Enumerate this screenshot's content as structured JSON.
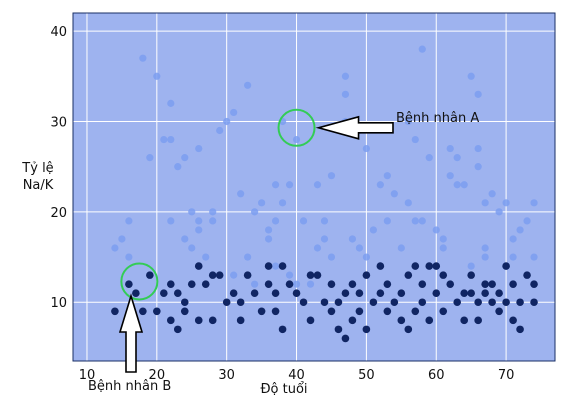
{
  "chart_data": {
    "type": "scatter",
    "title": "",
    "xlabel": "Độ tuổi",
    "ylabel": "Tỷ lệ\nNa/K",
    "ylabel_lines": [
      "Tỷ lệ",
      "Na/K"
    ],
    "xlim": [
      8,
      77
    ],
    "ylim": [
      3.5,
      42
    ],
    "xticks": [
      10,
      20,
      30,
      40,
      50,
      60,
      70
    ],
    "yticks": [
      10,
      20,
      30,
      40
    ],
    "grid": true,
    "colors": {
      "background": "#9eb3ef",
      "grid": "#ffffff",
      "light_points": "#7b9ef0",
      "dark_points": "#102563",
      "highlight": "#33cc55"
    },
    "series": [
      {
        "name": "",
        "color": "#7b9ef0",
        "points": [
          [
            14,
            16
          ],
          [
            15,
            17
          ],
          [
            16,
            19
          ],
          [
            16,
            15
          ],
          [
            18,
            37
          ],
          [
            20,
            35
          ],
          [
            19,
            26
          ],
          [
            21,
            28
          ],
          [
            22,
            28
          ],
          [
            22,
            19
          ],
          [
            23,
            25
          ],
          [
            24,
            26
          ],
          [
            22,
            32
          ],
          [
            25,
            16
          ],
          [
            25,
            20
          ],
          [
            26,
            19
          ],
          [
            26,
            18
          ],
          [
            24,
            17
          ],
          [
            26,
            27
          ],
          [
            28,
            20
          ],
          [
            28,
            19
          ],
          [
            29,
            29
          ],
          [
            30,
            30
          ],
          [
            31,
            31
          ],
          [
            33,
            34
          ],
          [
            31,
            13
          ],
          [
            32,
            22
          ],
          [
            33,
            15
          ],
          [
            34,
            20
          ],
          [
            35,
            21
          ],
          [
            36,
            17
          ],
          [
            36,
            18
          ],
          [
            37,
            23
          ],
          [
            37,
            14
          ],
          [
            38,
            30
          ],
          [
            38,
            21
          ],
          [
            39,
            23
          ],
          [
            39,
            13
          ],
          [
            40,
            28
          ],
          [
            41,
            19
          ],
          [
            42,
            12
          ],
          [
            43,
            23
          ],
          [
            43,
            16
          ],
          [
            44,
            19
          ],
          [
            45,
            15
          ],
          [
            45,
            24
          ],
          [
            47,
            30
          ],
          [
            47,
            35
          ],
          [
            47,
            33
          ],
          [
            48,
            17
          ],
          [
            49,
            29
          ],
          [
            49,
            16
          ],
          [
            50,
            27
          ],
          [
            50,
            15
          ],
          [
            51,
            18
          ],
          [
            52,
            23
          ],
          [
            53,
            24
          ],
          [
            53,
            19
          ],
          [
            54,
            22
          ],
          [
            55,
            16
          ],
          [
            56,
            30
          ],
          [
            57,
            28
          ],
          [
            57,
            19
          ],
          [
            58,
            19
          ],
          [
            58,
            38
          ],
          [
            59,
            26
          ],
          [
            60,
            14
          ],
          [
            60,
            18
          ],
          [
            61,
            16
          ],
          [
            61,
            17
          ],
          [
            62,
            27
          ],
          [
            63,
            26
          ],
          [
            63,
            23
          ],
          [
            64,
            23
          ],
          [
            65,
            35
          ],
          [
            65,
            14
          ],
          [
            66,
            25
          ],
          [
            66,
            33
          ],
          [
            66,
            27
          ],
          [
            67,
            16
          ],
          [
            67,
            21
          ],
          [
            68,
            22
          ],
          [
            69,
            20
          ],
          [
            70,
            21
          ],
          [
            70,
            14
          ],
          [
            71,
            17
          ],
          [
            71,
            15
          ],
          [
            72,
            18
          ],
          [
            73,
            19
          ],
          [
            74,
            21
          ],
          [
            74,
            15
          ],
          [
            37,
            19
          ],
          [
            40,
            12
          ],
          [
            27,
            15
          ],
          [
            56,
            21
          ],
          [
            62,
            24
          ],
          [
            67,
            15
          ],
          [
            44,
            17
          ],
          [
            34,
            12
          ]
        ]
      },
      {
        "name": "",
        "color": "#102563",
        "points": [
          [
            14,
            9
          ],
          [
            16,
            12
          ],
          [
            17,
            11
          ],
          [
            18,
            9
          ],
          [
            19,
            13
          ],
          [
            20,
            9
          ],
          [
            21,
            11
          ],
          [
            22,
            8
          ],
          [
            22,
            12
          ],
          [
            23,
            11
          ],
          [
            23,
            7
          ],
          [
            24,
            9
          ],
          [
            24,
            10
          ],
          [
            25,
            12
          ],
          [
            26,
            14
          ],
          [
            26,
            8
          ],
          [
            27,
            12
          ],
          [
            28,
            13
          ],
          [
            28,
            8
          ],
          [
            29,
            13
          ],
          [
            30,
            10
          ],
          [
            31,
            11
          ],
          [
            32,
            10
          ],
          [
            32,
            8
          ],
          [
            33,
            13
          ],
          [
            34,
            11
          ],
          [
            35,
            9
          ],
          [
            36,
            14
          ],
          [
            36,
            12
          ],
          [
            37,
            11
          ],
          [
            37,
            9
          ],
          [
            38,
            14
          ],
          [
            38,
            7
          ],
          [
            39,
            12
          ],
          [
            40,
            11
          ],
          [
            41,
            10
          ],
          [
            42,
            13
          ],
          [
            42,
            8
          ],
          [
            43,
            13
          ],
          [
            44,
            10
          ],
          [
            45,
            9
          ],
          [
            45,
            12
          ],
          [
            46,
            7
          ],
          [
            46,
            10
          ],
          [
            47,
            6
          ],
          [
            47,
            11
          ],
          [
            48,
            12
          ],
          [
            48,
            8
          ],
          [
            49,
            9
          ],
          [
            49,
            11
          ],
          [
            50,
            7
          ],
          [
            50,
            13
          ],
          [
            51,
            10
          ],
          [
            52,
            11
          ],
          [
            52,
            14
          ],
          [
            53,
            9
          ],
          [
            53,
            12
          ],
          [
            54,
            10
          ],
          [
            55,
            11
          ],
          [
            55,
            8
          ],
          [
            56,
            13
          ],
          [
            56,
            7
          ],
          [
            57,
            9
          ],
          [
            57,
            14
          ],
          [
            58,
            10
          ],
          [
            58,
            12
          ],
          [
            59,
            14
          ],
          [
            59,
            8
          ],
          [
            60,
            14
          ],
          [
            60,
            11
          ],
          [
            61,
            13
          ],
          [
            61,
            9
          ],
          [
            62,
            12
          ],
          [
            63,
            10
          ],
          [
            64,
            8
          ],
          [
            64,
            11
          ],
          [
            65,
            13
          ],
          [
            65,
            11
          ],
          [
            66,
            10
          ],
          [
            66,
            8
          ],
          [
            67,
            12
          ],
          [
            67,
            11
          ],
          [
            68,
            10
          ],
          [
            68,
            12
          ],
          [
            69,
            9
          ],
          [
            69,
            11
          ],
          [
            70,
            14
          ],
          [
            70,
            10
          ],
          [
            71,
            12
          ],
          [
            71,
            8
          ],
          [
            72,
            7
          ],
          [
            72,
            10
          ],
          [
            73,
            13
          ],
          [
            74,
            10
          ],
          [
            74,
            12
          ]
        ]
      }
    ],
    "annotations": [
      {
        "text": "Bệnh nhân A",
        "target": [
          40,
          29.3
        ]
      },
      {
        "text": "Bệnh nhân B",
        "target": [
          17.5,
          12.3
        ]
      }
    ]
  }
}
